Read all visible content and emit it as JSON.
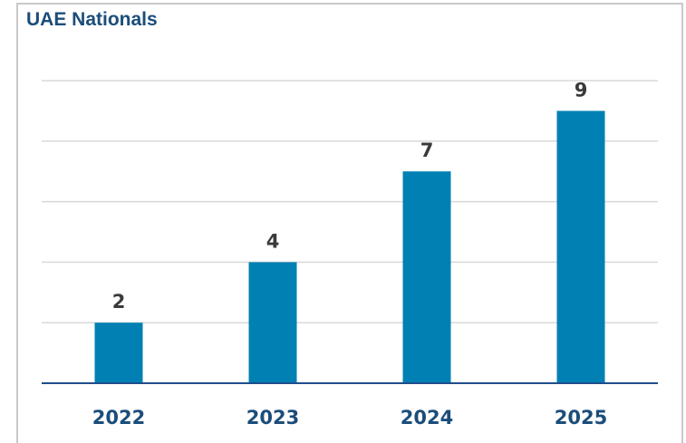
{
  "chart_data": {
    "type": "bar",
    "title": "UAE Nationals",
    "categories": [
      "2022",
      "2023",
      "2024",
      "2025"
    ],
    "values": [
      2,
      4,
      7,
      9
    ],
    "ylim": [
      0,
      10
    ],
    "grid": true,
    "bar_color": "#0080b3",
    "axis_color": "#1f4e8c",
    "grid_color": "#d9d9d9"
  }
}
